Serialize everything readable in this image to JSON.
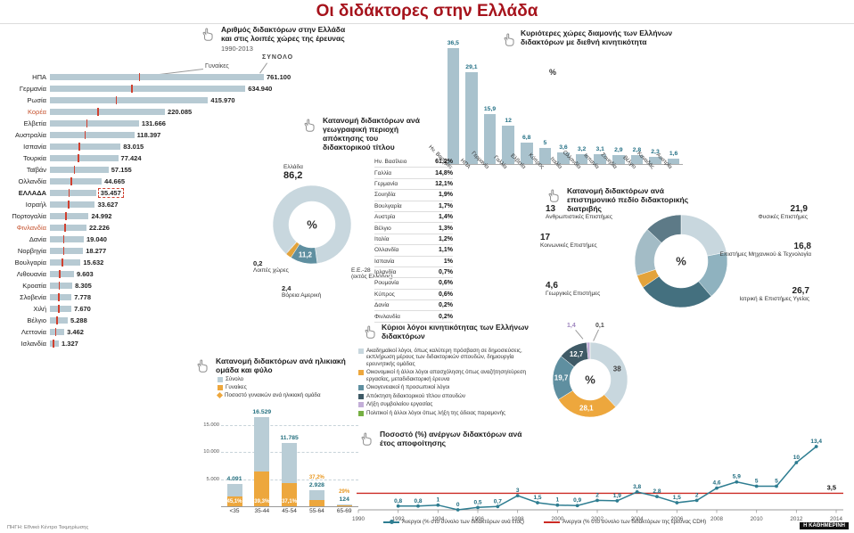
{
  "page_title": "Οι διδάκτορες στην Ελλάδα",
  "colors": {
    "title": "#a6131c",
    "accent_red": "#d0402f",
    "accent_orange": "#eda73d",
    "teal": "#2e7d91"
  },
  "footer": {
    "source": "ΠΗΓΗ: Εθνικό Κέντρο Τεκμηρίωσης",
    "brand": "Η ΚΑΘΗΜΕΡΙΝΗ"
  },
  "chart_data": [
    {
      "name": "doctorates-by-country",
      "type": "bar",
      "orientation": "horizontal",
      "title": "Αριθμός διδακτόρων στην Ελλάδα και στις λοιπές χώρες της έρευνας",
      "subtitle": "1990-2013",
      "annotations": {
        "total": "ΣΥΝΟΛΟ",
        "women": "Γυναίκες"
      },
      "bar_color": "#b7cad3",
      "tick_color": "#d0402f",
      "categories": [
        "ΗΠΑ",
        "Γερμανία",
        "Ρωσία",
        "Κορέα",
        "Ελβετία",
        "Αυστραλία",
        "Ισπανία",
        "Τουρκία",
        "Ταϊβάν",
        "Ολλανδία",
        "ΕΛΛΑΔΑ",
        "Ισραήλ",
        "Πορτογαλία",
        "Φινλανδία",
        "Δανία",
        "Νορβηγία",
        "Βουλγαρία",
        "Λιθουανία",
        "Κροατία",
        "Σλοβενία",
        "Χιλή",
        "Βέλγιο",
        "Λεττονία",
        "Ισλανδία"
      ],
      "values": [
        761100,
        634940,
        415970,
        220085,
        131666,
        118397,
        83015,
        77424,
        57155,
        44665,
        35457,
        33627,
        24992,
        22226,
        19040,
        18277,
        15632,
        9603,
        8305,
        7778,
        7670,
        5288,
        3462,
        1327
      ],
      "value_labels": [
        "761.100",
        "634.940",
        "415.970",
        "220.085",
        "131.666",
        "118.397",
        "83.015",
        "77.424",
        "57.155",
        "44.665",
        "35.457",
        "33.627",
        "24.992",
        "22.226",
        "19.040",
        "18.277",
        "15.632",
        "9.603",
        "8.305",
        "7.778",
        "7.670",
        "5.288",
        "3.462",
        "1.327"
      ],
      "highlighted_category": "ΕΛΛΑΔΑ",
      "red_categories": [
        "Κορέα",
        "Φινλανδία"
      ]
    },
    {
      "name": "residence-countries",
      "type": "bar",
      "orientation": "vertical",
      "title": "Κυριότερες χώρες διαμονής των Ελλήνων διδακτόρων με διεθνή κινητικότητα",
      "unit": "%",
      "bar_color": "#a9c2cd",
      "categories": [
        "Ην. Βασίλειο",
        "ΗΠΑ",
        "Γερμανία",
        "Γαλλία",
        "Ελβετία",
        "Κύπρος",
        "Ιταλία",
        "Ολλανδία",
        "Ισπανία",
        "Σουηδία",
        "Βέλγιο",
        "Καναδάς",
        "Αυστρία"
      ],
      "values": [
        36.5,
        29.1,
        15.9,
        12,
        6.8,
        5,
        3.6,
        3.2,
        3.1,
        2.9,
        2.8,
        2.3,
        1.6
      ],
      "value_labels": [
        "36,5",
        "29,1",
        "15,9",
        "12",
        "6,8",
        "5",
        "3,6",
        "3,2",
        "3,1",
        "2,9",
        "2,8",
        "2,3",
        "1,6"
      ]
    },
    {
      "name": "doctorate-region",
      "type": "pie",
      "title": "Κατανομή διδακτόρων ανά γεωγραφική περιοχή απόκτησης του διδακτορικού τίτλου",
      "center_label": "%",
      "slices": [
        {
          "label": "Ελλάδα",
          "value": 86.2,
          "value_label": "86,2",
          "color": "#c8d7de"
        },
        {
          "label": "Ε.Ε.-28",
          "sublabel": "(εκτός Ελλάδας)",
          "value": 11.2,
          "value_label": "11,2",
          "color": "#5f8fa0",
          "inside": true
        },
        {
          "label": "Βόρεια Αμερική",
          "value": 2.4,
          "value_label": "2,4",
          "color": "#e3a33b"
        },
        {
          "label": "Λοιπές χώρες",
          "value": 0.2,
          "value_label": "0,2",
          "color": "#3f5a66"
        }
      ],
      "eu_breakdown": [
        [
          "Ην. Βασίλειο",
          "61,2%"
        ],
        [
          "Γαλλία",
          "14,8%"
        ],
        [
          "Γερμανία",
          "12,1%"
        ],
        [
          "Σουηδία",
          "1,9%"
        ],
        [
          "Βουλγαρία",
          "1,7%"
        ],
        [
          "Αυστρία",
          "1,4%"
        ],
        [
          "Βέλγιο",
          "1,3%"
        ],
        [
          "Ιταλία",
          "1,2%"
        ],
        [
          "Ολλανδία",
          "1,1%"
        ],
        [
          "Ισπανία",
          "1%"
        ],
        [
          "Ιρλανδία",
          "0,7%"
        ],
        [
          "Ρουμανία",
          "0,6%"
        ],
        [
          "Κύπρος",
          "0,6%"
        ],
        [
          "Δανία",
          "0,2%"
        ],
        [
          "Φινλανδία",
          "0,2%"
        ]
      ]
    },
    {
      "name": "scientific-field",
      "type": "pie",
      "title": "Κατανομή διδακτόρων ανά επιστημονικό πεδίο διδακτορικής διατριβής",
      "center_label": "%",
      "slices": [
        {
          "label": "Φυσικές Επιστήμες",
          "value": 21.9,
          "value_label": "21,9",
          "color": "#c8d7de"
        },
        {
          "label": "Επιστήμες Μηχανικού & Τεχνολογία",
          "value": 16.8,
          "value_label": "16,8",
          "color": "#8fb2bf"
        },
        {
          "label": "Ιατρική & Επιστήμες Υγείας",
          "value": 26.7,
          "value_label": "26,7",
          "color": "#44707f"
        },
        {
          "label": "Γεωργικές Επιστήμες",
          "value": 4.6,
          "value_label": "4,6",
          "color": "#e3a33b"
        },
        {
          "label": "Κοινωνικές Επιστήμες",
          "value": 17,
          "value_label": "17",
          "color": "#a3bcc6"
        },
        {
          "label": "Ανθρωπιστικές Επιστήμες",
          "value": 13,
          "value_label": "13",
          "color": "#5d7a87"
        }
      ]
    },
    {
      "name": "mobility-reasons",
      "type": "pie",
      "title": "Κύριοι λόγοι κινητικότητας των Ελλήνων διδακτόρων",
      "center_label": "%",
      "slices": [
        {
          "label": "Ακαδημαϊκοί λόγοι, όπως καλύτερη πρόσβαση σε δημοσιεύσεις, εκπλήρωση μέρους των διδακτορικών σπουδών, δημιουργία ερευνητικής ομάδας",
          "value": 38,
          "value_label": "38",
          "color": "#c8d7de",
          "inside": true,
          "label_color": "#3f3f3f"
        },
        {
          "label": "Οικονομικοί ή άλλοι λόγοι απασχόλησης όπως αναζήτηση/εύρεση εργασίας, μεταδιδακτορική έρευνα",
          "value": 28.1,
          "value_label": "28,1",
          "color": "#eda73d",
          "inside": true
        },
        {
          "label": "Οικογενειακοί ή προσωπικοί λόγοι",
          "value": 19.7,
          "value_label": "19,7",
          "color": "#5f8fa0",
          "inside": true
        },
        {
          "label": "Απόκτηση διδακτορικού τίτλου σπουδών",
          "value": 12.7,
          "value_label": "12,7",
          "color": "#3f5a66",
          "inside": true
        },
        {
          "label": "Λήξη συμβολαίου εργασίας",
          "value": 1.4,
          "value_label": "1,4",
          "color": "#c3aed8"
        },
        {
          "label": "Πολιτικοί ή άλλοι λόγοι όπως λήξη της άδειας παραμονής",
          "value": 0.1,
          "value_label": "0,1",
          "color": "#76b043"
        }
      ]
    },
    {
      "name": "age-gender",
      "type": "bar",
      "title": "Κατανομή διδακτόρων ανά ηλικιακή ομάδα και φύλο",
      "legend": [
        {
          "label": "Σύνολο",
          "color": "#b9cdd6",
          "marker": "square"
        },
        {
          "label": "Γυναίκες",
          "color": "#eda73d",
          "marker": "square"
        },
        {
          "label": "Ποσοστό γυναικών ανά ηλικιακή ομάδα",
          "color": "#eda73d",
          "marker": "diamond"
        }
      ],
      "categories": [
        "<35",
        "35-44",
        "45-54",
        "55-64",
        "65-69"
      ],
      "series": [
        {
          "name": "Σύνολο",
          "values": [
            4091,
            16529,
            11785,
            2928,
            124
          ],
          "labels": [
            "4.091",
            "16.529",
            "11.785",
            "2.928",
            "124"
          ]
        },
        {
          "name": "Ποσοστό γυναικών",
          "values": [
            45.1,
            39.3,
            37.1,
            37.2,
            29
          ],
          "labels": [
            "45,1%",
            "39,3%",
            "37,1%",
            "37,2%",
            "29%"
          ]
        }
      ],
      "yticks": [
        "5.000",
        "10.000",
        "15.000"
      ],
      "ylim": [
        0,
        17500
      ]
    },
    {
      "name": "unemployed-by-graduation-year",
      "type": "line",
      "title": "Ποσοστό (%) ανέργων διδακτόρων ανά έτος αποφοίτησης",
      "x": [
        1992,
        1993,
        1994,
        1995,
        1996,
        1997,
        1998,
        1999,
        2000,
        2001,
        2002,
        2003,
        2004,
        2005,
        2006,
        2007,
        2008,
        2009,
        2010,
        2011,
        2012,
        2013
      ],
      "values": [
        0.8,
        0.8,
        1,
        0,
        0.5,
        0.7,
        3,
        1.5,
        1,
        0.9,
        2,
        1.9,
        3.8,
        2.8,
        1.5,
        2,
        4.6,
        5.9,
        5,
        5,
        10,
        13.4
      ],
      "point_labels": [
        "0,8",
        "0,8",
        "1",
        "0",
        "0,5",
        "0,7",
        "3",
        "1,5",
        "1",
        "0,9",
        "2",
        "1,9",
        "3,8",
        "2,8",
        "1,5",
        "2",
        "4,6",
        "5,9",
        "5",
        "5",
        "10",
        "13,4"
      ],
      "xticks": [
        1990,
        1992,
        1994,
        1996,
        1998,
        2000,
        2002,
        2004,
        2006,
        2008,
        2010,
        2012,
        2014
      ],
      "xlim": [
        1990,
        2014
      ],
      "ylim": [
        0,
        14
      ],
      "line_color": "#2e7d91",
      "reference_line": {
        "value": 3.5,
        "label": "3,5",
        "color": "#cc2b24"
      },
      "legend": [
        {
          "label": "Άνεργοι (% στο σύνολο των διδακτόρων ανά έτος)",
          "color": "#2e7d91",
          "marker": "line-dot"
        },
        {
          "label": "Άνεργοι (% στο σύνολο των διδακτόρων της έρευνας CDH)",
          "color": "#cc2b24",
          "marker": "line"
        }
      ]
    }
  ]
}
